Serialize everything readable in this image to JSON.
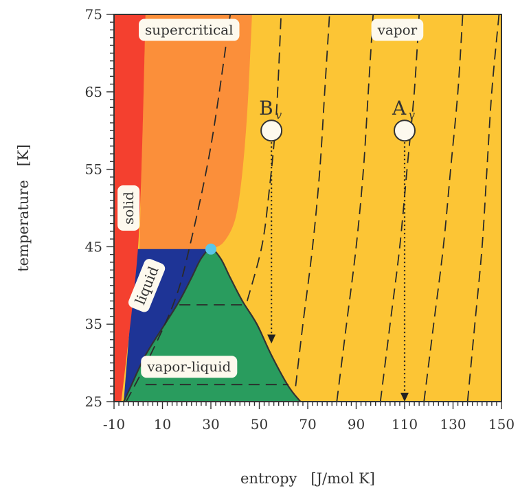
{
  "chart_data": {
    "type": "phase-diagram",
    "xlabel": "entropy   [J/mol K]",
    "ylabel": "temperature   [K]",
    "xlim": [
      -10,
      150
    ],
    "ylim": [
      25,
      75
    ],
    "x_ticks": [
      -10,
      10,
      30,
      50,
      70,
      90,
      110,
      130,
      150
    ],
    "y_ticks": [
      25,
      35,
      45,
      55,
      65,
      75
    ],
    "grid": false,
    "colors": {
      "solid": "#f4402f",
      "supercritical": "#fb8f3a",
      "vapor": "#fcc535",
      "liquid": "#1e3496",
      "vapor_liquid": "#299c5e",
      "critical_point": "#5bc6e8",
      "label_box": "#fdf9ee"
    },
    "regions": [
      {
        "name": "solid",
        "label": "solid",
        "label_at": [
          -4,
          50
        ],
        "rotate": -90
      },
      {
        "name": "supercritical",
        "label": "supercritical",
        "label_at": [
          21,
          73
        ]
      },
      {
        "name": "vapor",
        "label": "vapor",
        "label_at": [
          107,
          73
        ]
      },
      {
        "name": "liquid",
        "label": "liquid",
        "label_at": [
          3.5,
          40
        ],
        "rotate": -68
      },
      {
        "name": "vapor-liquid",
        "label": "vapor-liquid",
        "label_at": [
          21,
          29.5
        ]
      }
    ],
    "boundaries": {
      "solid_right": [
        [
          -7,
          25
        ],
        [
          -1.5,
          40
        ],
        [
          0.5,
          48
        ],
        [
          1.8,
          60
        ],
        [
          3,
          75
        ]
      ],
      "supercritical_right": [
        [
          30,
          44.7
        ],
        [
          35,
          45.5
        ],
        [
          39.5,
          48
        ],
        [
          42,
          52
        ],
        [
          44,
          58
        ],
        [
          45.5,
          65
        ],
        [
          47,
          75
        ]
      ],
      "dome": [
        [
          -6,
          25
        ],
        [
          -3,
          27
        ],
        [
          3,
          31
        ],
        [
          11,
          35
        ],
        [
          17,
          38
        ],
        [
          22,
          41
        ],
        [
          26,
          43.5
        ],
        [
          30,
          44.7
        ],
        [
          34,
          43.5
        ],
        [
          38,
          41
        ],
        [
          43,
          38
        ],
        [
          49,
          35
        ],
        [
          55,
          31
        ],
        [
          62,
          27
        ],
        [
          67,
          25
        ]
      ]
    },
    "critical_point": {
      "s": 30,
      "T": 44.7
    },
    "isobars": [
      [
        [
          -5,
          25
        ],
        [
          5,
          31
        ],
        [
          15,
          38
        ],
        [
          21,
          44.7
        ],
        [
          30,
          58
        ],
        [
          38,
          75
        ]
      ],
      [
        [
          45,
          38
        ],
        [
          51,
          45
        ],
        [
          54,
          52
        ],
        [
          57,
          62
        ],
        [
          59,
          75
        ]
      ],
      [
        [
          65,
          27
        ],
        [
          68,
          35
        ],
        [
          72,
          45
        ],
        [
          75,
          55
        ],
        [
          77,
          65
        ],
        [
          79,
          75
        ]
      ],
      [
        [
          82,
          25
        ],
        [
          86,
          35
        ],
        [
          90,
          45
        ],
        [
          93,
          55
        ],
        [
          95,
          65
        ],
        [
          97,
          75
        ]
      ],
      [
        [
          100,
          25
        ],
        [
          104,
          35
        ],
        [
          108,
          45
        ],
        [
          111,
          55
        ],
        [
          114,
          65
        ],
        [
          116,
          75
        ]
      ],
      [
        [
          118,
          25
        ],
        [
          122,
          35
        ],
        [
          126,
          45
        ],
        [
          129,
          55
        ],
        [
          132,
          65
        ],
        [
          134,
          75
        ]
      ],
      [
        [
          136,
          25
        ],
        [
          139,
          35
        ],
        [
          142,
          45
        ],
        [
          144,
          55
        ],
        [
          146,
          65
        ],
        [
          149,
          75
        ]
      ]
    ],
    "tie_lines": [
      {
        "x": [
          17,
          43
        ],
        "y": 37.5
      },
      {
        "x": [
          3,
          62
        ],
        "y": 27.2
      }
    ],
    "points": [
      {
        "label": "B",
        "sub": "v",
        "s": 55,
        "T": 60,
        "arrow_to_T": 32.5
      },
      {
        "label": "A",
        "sub": "v",
        "s": 110,
        "T": 60,
        "arrow_to_T": 25
      }
    ]
  }
}
